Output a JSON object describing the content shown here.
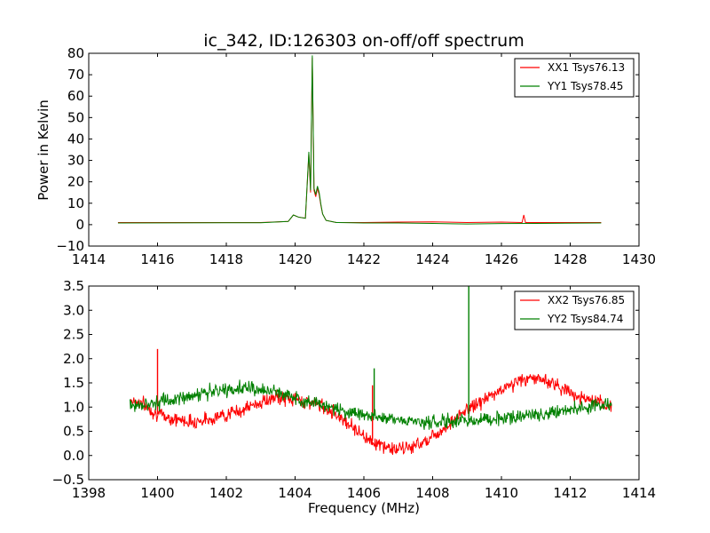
{
  "chart_data": [
    {
      "type": "line",
      "title": "ic_342, ID:126303 on-off/off spectrum",
      "xlabel": "",
      "ylabel": "Power in Kelvin",
      "xlim": [
        1414,
        1430
      ],
      "ylim": [
        -10,
        80
      ],
      "xticks": [
        1414,
        1416,
        1418,
        1420,
        1422,
        1424,
        1426,
        1428,
        1430
      ],
      "yticks": [
        -10,
        0,
        10,
        20,
        30,
        40,
        50,
        60,
        70,
        80
      ],
      "grid": false,
      "legend_position": "top-right",
      "series": [
        {
          "name": "XX1 Tsys76.13",
          "color": "#ff0000",
          "x": [
            1414.85,
            1419.0,
            1419.8,
            1419.95,
            1420.1,
            1420.3,
            1420.4,
            1420.45,
            1420.5,
            1420.55,
            1420.6,
            1420.65,
            1420.7,
            1420.75,
            1420.8,
            1420.9,
            1421.2,
            1422.0,
            1423.0,
            1424.0,
            1425.0,
            1426.0,
            1426.6,
            1426.65,
            1426.7,
            1427.0,
            1428.9
          ],
          "y": [
            1.0,
            1.0,
            1.5,
            4.5,
            3.5,
            3.0,
            33.0,
            15.0,
            78.0,
            16.0,
            13.0,
            17.0,
            14.0,
            9.0,
            5.0,
            2.0,
            1.0,
            1.0,
            1.2,
            1.3,
            1.0,
            1.2,
            1.0,
            4.5,
            1.0,
            1.0,
            1.0
          ]
        },
        {
          "name": "YY1 Tsys78.45",
          "color": "#008000",
          "x": [
            1414.85,
            1419.0,
            1419.8,
            1419.95,
            1420.1,
            1420.3,
            1420.4,
            1420.45,
            1420.5,
            1420.55,
            1420.6,
            1420.65,
            1420.7,
            1420.75,
            1420.8,
            1420.9,
            1421.2,
            1422.0,
            1423.0,
            1424.0,
            1425.0,
            1426.0,
            1427.0,
            1428.9
          ],
          "y": [
            0.8,
            0.9,
            1.5,
            4.5,
            3.5,
            3.0,
            34.0,
            16.0,
            79.0,
            17.0,
            14.0,
            18.0,
            15.0,
            9.5,
            5.0,
            2.0,
            1.0,
            0.8,
            0.8,
            0.6,
            0.3,
            0.5,
            0.6,
            0.8
          ]
        }
      ]
    },
    {
      "type": "line",
      "title": "",
      "xlabel": "Frequency (MHz)",
      "ylabel": "",
      "xlim": [
        1398,
        1414
      ],
      "ylim": [
        -0.5,
        3.5
      ],
      "xticks": [
        1398,
        1400,
        1402,
        1404,
        1406,
        1408,
        1410,
        1412,
        1414
      ],
      "yticks": [
        -0.5,
        0.0,
        0.5,
        1.0,
        1.5,
        2.0,
        2.5,
        3.0,
        3.5
      ],
      "grid": false,
      "legend_position": "top-right",
      "series": [
        {
          "name": "XX2 Tsys76.85",
          "color": "#ff0000",
          "noise": 0.11,
          "x": [
            1399.2,
            1399.5,
            1400.0,
            1400.5,
            1401.0,
            1401.5,
            1402.0,
            1402.5,
            1403.0,
            1403.5,
            1404.0,
            1404.5,
            1405.0,
            1405.5,
            1406.0,
            1406.5,
            1407.0,
            1407.5,
            1408.0,
            1408.5,
            1409.0,
            1409.5,
            1410.0,
            1410.5,
            1411.0,
            1411.5,
            1412.0,
            1412.5,
            1413.2
          ],
          "y": [
            1.15,
            1.1,
            0.85,
            0.75,
            0.7,
            0.75,
            0.85,
            0.95,
            1.1,
            1.2,
            1.15,
            1.1,
            0.95,
            0.7,
            0.4,
            0.2,
            0.12,
            0.2,
            0.4,
            0.65,
            0.95,
            1.15,
            1.35,
            1.55,
            1.6,
            1.5,
            1.3,
            1.15,
            1.0
          ],
          "spikes": [
            {
              "x": 1400.0,
              "y": 2.2
            },
            {
              "x": 1406.25,
              "y": 1.45
            }
          ]
        },
        {
          "name": "YY2 Tsys84.74",
          "color": "#008000",
          "noise": 0.11,
          "x": [
            1399.2,
            1399.5,
            1400.0,
            1400.5,
            1401.0,
            1401.5,
            1402.0,
            1402.5,
            1403.0,
            1403.5,
            1404.0,
            1404.5,
            1405.0,
            1405.5,
            1406.0,
            1406.5,
            1407.0,
            1407.5,
            1408.0,
            1408.5,
            1409.0,
            1409.5,
            1410.0,
            1410.5,
            1411.0,
            1411.5,
            1412.0,
            1412.5,
            1413.2
          ],
          "y": [
            1.05,
            1.05,
            1.1,
            1.15,
            1.25,
            1.3,
            1.35,
            1.4,
            1.35,
            1.3,
            1.2,
            1.1,
            1.0,
            0.9,
            0.85,
            0.8,
            0.75,
            0.7,
            0.68,
            0.7,
            0.72,
            0.75,
            0.78,
            0.8,
            0.85,
            0.9,
            0.95,
            1.0,
            1.05
          ],
          "spikes": [
            {
              "x": 1406.3,
              "y": 1.8
            },
            {
              "x": 1409.05,
              "y": 3.5
            }
          ]
        }
      ]
    }
  ]
}
